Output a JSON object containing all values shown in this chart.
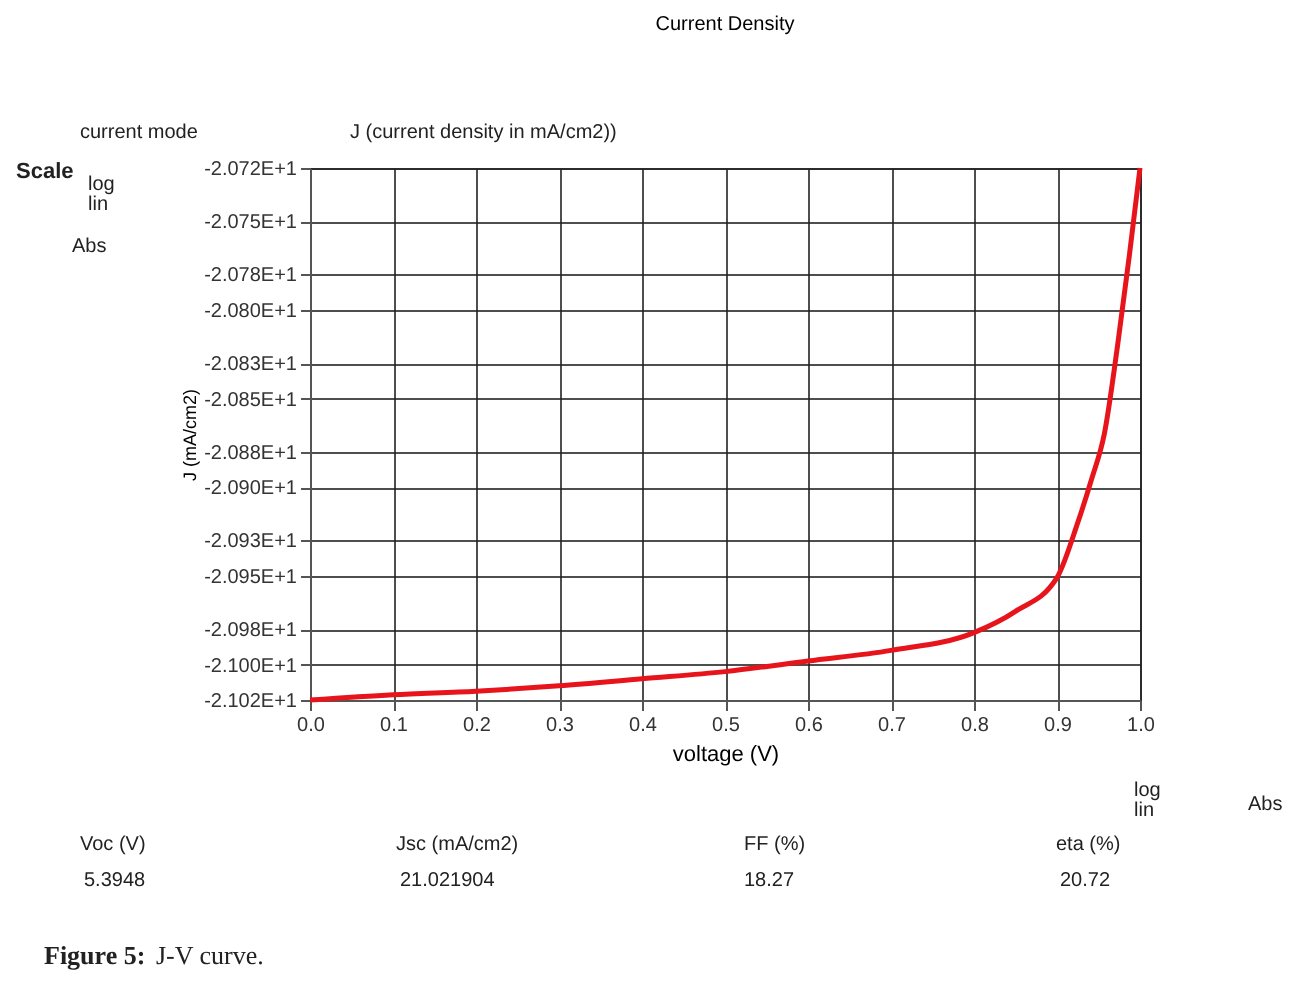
{
  "chart_data": {
    "type": "line",
    "title": "Current Density",
    "xlabel": "voltage (V)",
    "ylabel": "J (mA/cm2)",
    "x": [
      0.0,
      0.1,
      0.2,
      0.3,
      0.4,
      0.5,
      0.6,
      0.7,
      0.8,
      0.85,
      0.9,
      0.925,
      0.942,
      0.957,
      0.973,
      0.987,
      1.0
    ],
    "series": [
      {
        "color": "#e8141b",
        "values": [
          -21.02,
          -21.017,
          -21.015,
          -21.012,
          -21.008,
          -21.004,
          -20.998,
          -20.992,
          -20.982,
          -20.97,
          -20.951,
          -20.92,
          -20.895,
          -20.87,
          -20.82,
          -20.77,
          -20.72
        ]
      }
    ],
    "xlim": [
      0,
      1
    ],
    "xticks": [
      {
        "value": 0,
        "label": "0.0"
      },
      0.1,
      0.2,
      0.3,
      0.4,
      0.5,
      0.6,
      0.7,
      0.8,
      0.9,
      {
        "value": 1,
        "label": "1.0"
      }
    ],
    "ylim": [
      -21.02,
      -20.72
    ],
    "yticks": [
      {
        "value": -20.72,
        "label": "-2.072E+1"
      },
      {
        "value": -20.75,
        "label": "-2.075E+1"
      },
      {
        "value": -20.78,
        "label": "-2.078E+1"
      },
      {
        "value": -20.8,
        "label": "-2.080E+1"
      },
      {
        "value": -20.83,
        "label": "-2.083E+1"
      },
      {
        "value": -20.85,
        "label": "-2.085E+1"
      },
      {
        "value": -20.88,
        "label": "-2.088E+1"
      },
      {
        "value": -20.9,
        "label": "-2.090E+1"
      },
      {
        "value": -20.93,
        "label": "-2.093E+1"
      },
      {
        "value": -20.95,
        "label": "-2.095E+1"
      },
      {
        "value": -20.98,
        "label": "-2.098E+1"
      },
      {
        "value": -21.0,
        "label": "-2.100E+1"
      },
      {
        "value": -21.02,
        "label": "-2.102E+1"
      }
    ],
    "grid": true,
    "marker": "none",
    "line_style": "solid",
    "annotations": [
      "current mode",
      "J (current density in mA/cm2))",
      "Scale",
      "log",
      "lin",
      "Abs",
      "log",
      "lin",
      "Abs",
      "Voc (V)",
      "5.3948",
      "Jsc (mA/cm2)",
      "21.021904",
      "FF  (%)",
      "18.27",
      "eta (%)",
      "20.72",
      "Figure 5:",
      "J-V curve."
    ]
  }
}
